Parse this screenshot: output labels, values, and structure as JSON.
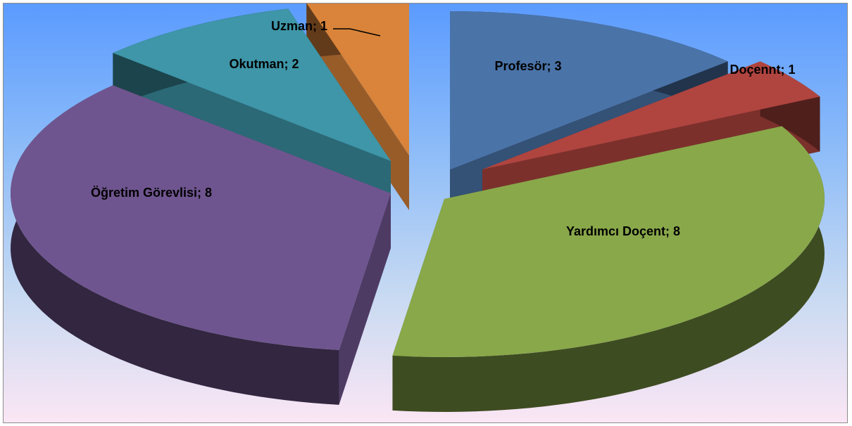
{
  "chart_data": {
    "type": "pie",
    "title": "",
    "slices": [
      {
        "label": "Profesör",
        "value": 3,
        "color": "#4a73a8",
        "text": "Profesör; 3"
      },
      {
        "label": "Doçennt",
        "value": 1,
        "color": "#b0443f",
        "text": "Doçennt; 1"
      },
      {
        "label": "Yardımcı Doçent",
        "value": 8,
        "color": "#89a84a",
        "text": "Yardımcı Doçent; 8"
      },
      {
        "label": "Öğretim Görevlisi",
        "value": 8,
        "color": "#6f558f",
        "text": "Öğretim Görevlisi; 8"
      },
      {
        "label": "Okutman",
        "value": 2,
        "color": "#3e96a8",
        "text": "Okutman; 2"
      },
      {
        "label": "Uzman",
        "value": 1,
        "color": "#d9843a",
        "text": "Uzman; 1"
      }
    ],
    "style": "3d-exploded"
  }
}
